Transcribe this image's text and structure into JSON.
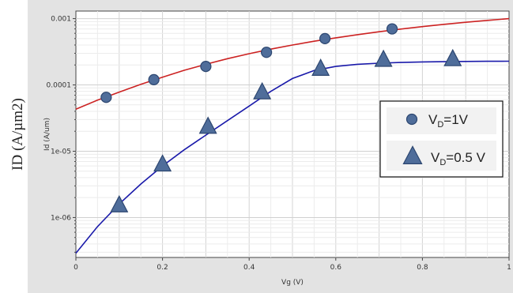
{
  "chart_data": {
    "type": "line",
    "ylabel_outer": "ID (A/µm2)",
    "ylabel_inner": "Id (A/um)",
    "xlabel": "Vg (V)",
    "xlim": [
      0,
      1
    ],
    "ylim": [
      2.5e-07,
      0.0013
    ],
    "yscale": "log",
    "grid": true,
    "legend_position": "right-center",
    "x_ticks": [
      0,
      0.2,
      0.4,
      0.6,
      0.8,
      1
    ],
    "x_tick_labels": [
      "0",
      "0.2",
      "0.4",
      "0.6",
      "0.8",
      "1"
    ],
    "y_ticks": [
      1e-06,
      1e-05,
      0.0001,
      0.001
    ],
    "y_tick_labels": [
      "1e-06",
      "1e-05",
      "0.0001",
      "0.001"
    ],
    "series": [
      {
        "name": "VD=1V",
        "legend_main": "V",
        "legend_sub": "D",
        "legend_rest": "=1V",
        "color": "#cc2222",
        "marker": "circle",
        "marker_color": "#4f6d9a",
        "curve": {
          "x": [
            0,
            0.05,
            0.1,
            0.15,
            0.2,
            0.25,
            0.3,
            0.35,
            0.4,
            0.45,
            0.5,
            0.55,
            0.6,
            0.65,
            0.7,
            0.75,
            0.8,
            0.85,
            0.9,
            0.95,
            1.0
          ],
          "y": [
            4.3e-05,
            5.9e-05,
            7.8e-05,
            0.000102,
            0.000131,
            0.000166,
            0.000205,
            0.000249,
            0.000296,
            0.000347,
            0.0004,
            0.000456,
            0.000513,
            0.000572,
            0.000633,
            0.000695,
            0.000757,
            0.00082,
            0.00088,
            0.00094,
            0.001
          ]
        },
        "markers": {
          "x": [
            0.07,
            0.18,
            0.3,
            0.44,
            0.575,
            0.73
          ],
          "y": [
            6.5e-05,
            0.00012,
            0.00019,
            0.00031,
            0.0005,
            0.0007
          ]
        }
      },
      {
        "name": "VD=0.5 V",
        "legend_main": "V",
        "legend_sub": "D",
        "legend_rest": "=0.5 V",
        "color": "#1a1aaa",
        "marker": "triangle",
        "marker_color": "#4f6d9a",
        "curve": {
          "x": [
            0,
            0.05,
            0.1,
            0.15,
            0.2,
            0.25,
            0.3,
            0.35,
            0.4,
            0.45,
            0.5,
            0.55,
            0.6,
            0.65,
            0.7,
            0.75,
            0.8,
            0.85,
            0.9,
            0.95,
            1.0
          ],
          "y": [
            2.9e-07,
            7.3e-07,
            1.6e-06,
            3.2e-06,
            6e-06,
            1.05e-05,
            1.75e-05,
            2.9e-05,
            4.8e-05,
            8e-05,
            0.000125,
            0.000165,
            0.00019,
            0.000205,
            0.000213,
            0.000218,
            0.000222,
            0.000224,
            0.000226,
            0.000227,
            0.000228
          ]
        },
        "markers": {
          "x": [
            0.1,
            0.2,
            0.305,
            0.43,
            0.565,
            0.71,
            0.87
          ],
          "y": [
            1.5e-06,
            6.2e-06,
            2.3e-05,
            7.6e-05,
            0.000172,
            0.000235,
            0.00024
          ]
        }
      }
    ]
  }
}
